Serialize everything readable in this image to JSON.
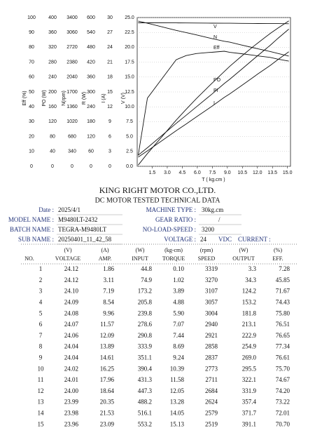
{
  "chart": {
    "axes": [
      {
        "label": "Eff (%)",
        "ticks": [
          0,
          10,
          20,
          30,
          40,
          50,
          60,
          70,
          80,
          90,
          100
        ]
      },
      {
        "label": "PO (W)",
        "ticks": [
          0,
          40,
          80,
          120,
          160,
          200,
          240,
          280,
          320,
          360,
          400
        ]
      },
      {
        "label": "N(rpm)",
        "ticks": [
          0,
          340,
          680,
          1020,
          1360,
          1700,
          2040,
          2380,
          2720,
          3060,
          3400
        ]
      },
      {
        "label": "R (W)",
        "ticks": [
          0,
          60,
          120,
          180,
          240,
          300,
          360,
          420,
          480,
          540,
          600
        ]
      },
      {
        "label": "I (A)",
        "ticks": [
          0,
          3,
          6,
          9,
          12,
          15,
          18,
          21,
          24,
          27,
          30
        ]
      },
      {
        "label": "V (V)",
        "ticks": [
          {
            "value": 0,
            "label": "0.0"
          },
          {
            "value": 2.5,
            "label": "2.5"
          },
          {
            "value": 5,
            "label": "5.0"
          },
          {
            "value": 7.5,
            "label": "7.5"
          },
          {
            "value": 10,
            "label": "10.0"
          },
          {
            "value": 12.5,
            "label": "12.5"
          },
          {
            "value": 15,
            "label": "15.0"
          },
          {
            "value": 17.5,
            "label": "17.5"
          },
          {
            "value": 20,
            "label": "20.0"
          },
          {
            "value": 22.5,
            "label": "22.5"
          },
          {
            "value": 25,
            "label": "25.0"
          }
        ]
      }
    ],
    "xlabel": "T ( kg.cm )",
    "xlim": [
      0,
      15.3
    ],
    "xticks": [
      {
        "value": 1.5,
        "label": "1.5"
      },
      {
        "value": 3,
        "label": "3.0"
      },
      {
        "value": 4.5,
        "label": "4.5"
      },
      {
        "value": 6,
        "label": "6.0"
      },
      {
        "value": 7.5,
        "label": "7.5"
      },
      {
        "value": 9,
        "label": "9.0"
      },
      {
        "value": 10.5,
        "label": "10.5"
      },
      {
        "value": 12,
        "label": "12.0"
      },
      {
        "value": 13.5,
        "label": "13.5"
      },
      {
        "value": 15,
        "label": "15.0"
      }
    ],
    "curve_labels": [
      "V",
      "N",
      "Eff",
      "PO",
      "PI",
      "I"
    ]
  },
  "header": {
    "title": "KING RIGHT MOTOR CO.,LTD.",
    "subtitle": "DC MOTOR TESTED TECHNICAL DATA"
  },
  "info_left": [
    {
      "label": "Date :",
      "value": "2025/4/1"
    },
    {
      "label": "MODEL NAME :",
      "value": "M9480LT-2432"
    },
    {
      "label": "BATCH NAME :",
      "value": "TEGRA-M9480LT"
    },
    {
      "label": "SUB NAME :",
      "value": "20250401_11_42_58"
    }
  ],
  "info_right": [
    {
      "label": "MACHINE TYPE :",
      "value": "30kg.cm"
    },
    {
      "label": "GEAR RATIO :",
      "value": "/"
    },
    {
      "label": "NO-LOAD-SPEED :",
      "value": "3200"
    }
  ],
  "voltage": {
    "label": "VOLTAGE :",
    "value": "24",
    "unit": "VDC",
    "current_label": "CURRENT :"
  },
  "table": {
    "units": [
      "(V)",
      "(A)",
      "(W)",
      "(kg-cm)",
      "(rpm)",
      "(W)",
      "(%)"
    ],
    "names": [
      "NO.",
      "VOLTAGE",
      "AMP.",
      "INPUT",
      "TORQUE",
      "SPEED",
      "OUTPUT",
      "EFF."
    ],
    "rows": [
      [
        1,
        "24.12",
        "1.86",
        "44.8",
        "0.10",
        "3319",
        "3.3",
        "7.28"
      ],
      [
        2,
        "24.12",
        "3.11",
        "74.9",
        "1.02",
        "3270",
        "34.3",
        "45.85"
      ],
      [
        3,
        "24.10",
        "7.19",
        "173.2",
        "3.89",
        "3107",
        "124.2",
        "71.67"
      ],
      [
        4,
        "24.09",
        "8.54",
        "205.8",
        "4.88",
        "3057",
        "153.2",
        "74.43"
      ],
      [
        5,
        "24.08",
        "9.96",
        "239.8",
        "5.90",
        "3004",
        "181.8",
        "75.80"
      ],
      [
        6,
        "24.07",
        "11.57",
        "278.6",
        "7.07",
        "2940",
        "213.1",
        "76.51"
      ],
      [
        7,
        "24.06",
        "12.09",
        "290.8",
        "7.44",
        "2921",
        "222.9",
        "76.65"
      ],
      [
        8,
        "24.04",
        "13.89",
        "333.9",
        "8.69",
        "2858",
        "254.9",
        "77.34"
      ],
      [
        9,
        "24.04",
        "14.61",
        "351.1",
        "9.24",
        "2837",
        "269.0",
        "76.61"
      ],
      [
        10,
        "24.02",
        "16.25",
        "390.4",
        "10.39",
        "2773",
        "295.5",
        "75.70"
      ],
      [
        11,
        "24.01",
        "17.96",
        "431.3",
        "11.58",
        "2711",
        "322.1",
        "74.67"
      ],
      [
        12,
        "24.00",
        "18.64",
        "447.3",
        "12.05",
        "2684",
        "331.9",
        "74.20"
      ],
      [
        13,
        "23.99",
        "20.35",
        "488.2",
        "13.28",
        "2624",
        "357.4",
        "73.22"
      ],
      [
        14,
        "23.98",
        "21.53",
        "516.1",
        "14.05",
        "2579",
        "371.7",
        "72.01"
      ],
      [
        15,
        "23.96",
        "23.09",
        "553.2",
        "15.13",
        "2519",
        "391.1",
        "70.70"
      ]
    ]
  }
}
